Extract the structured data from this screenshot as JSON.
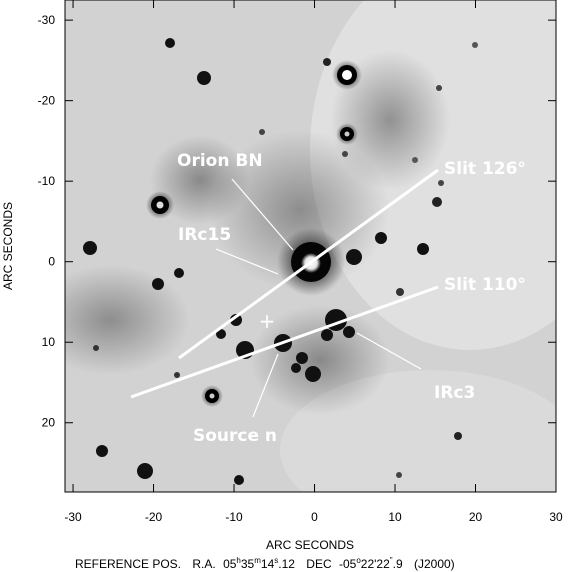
{
  "x_axis": {
    "label": "ARC SECONDS",
    "ticks": [
      "-30",
      "-20",
      "-10",
      "0",
      "10",
      "20",
      "30"
    ]
  },
  "y_axis": {
    "label": "ARC SECONDS",
    "ticks": [
      "-30",
      "-20",
      "-10",
      "0",
      "10",
      "20"
    ]
  },
  "reference": {
    "prefix": "REFERENCE POS.",
    "ra_label": "R.A.",
    "ra_h": "05",
    "ra_h_unit": "h",
    "ra_m": "35",
    "ra_m_unit": "m",
    "ra_s_int": "14",
    "ra_s_unit": "s",
    "ra_s_frac": ".12",
    "dec_label": "DEC",
    "dec_d": "-05",
    "dec_d_unit": "o",
    "dec_m": "22'",
    "dec_s_int": "22",
    "dec_s_unit": "\"",
    "dec_s_frac": ".9",
    "epoch": "(J2000)"
  },
  "annotations": {
    "orion_bn": "Orion BN",
    "irc15": "IRc15",
    "slit_126": "Slit 126°",
    "slit_110": "Slit 110°",
    "irc3": "IRc3",
    "source_n": "Source n"
  },
  "marker": "+",
  "colors": {
    "background": "#d0d0d0",
    "source": "#000000",
    "annotation": "#ffffff"
  }
}
